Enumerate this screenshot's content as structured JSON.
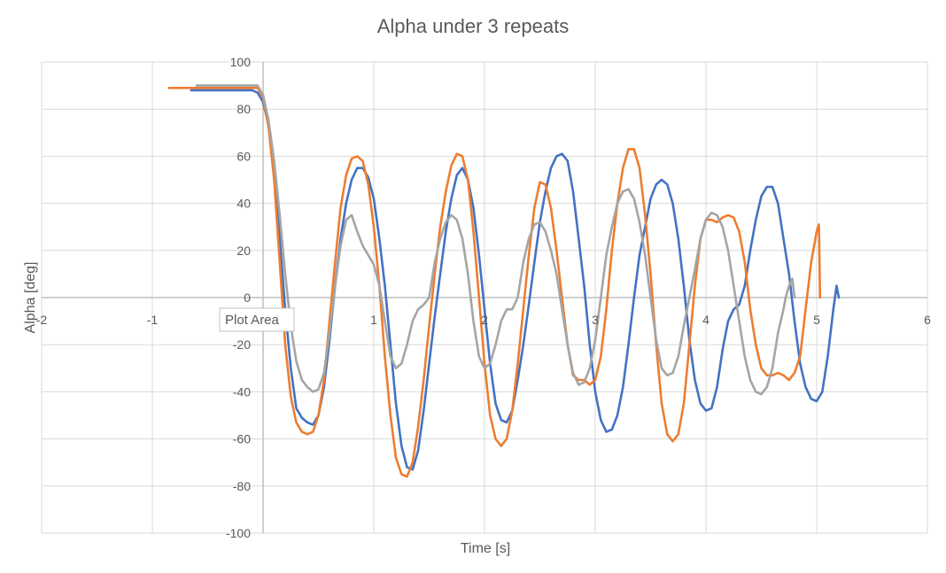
{
  "chart_data": {
    "type": "line",
    "title": "Alpha under 3 repeats",
    "xlabel": "Time [s]",
    "ylabel": "Alpha [deg]",
    "xlim": [
      -2,
      6
    ],
    "ylim": [
      -100,
      100
    ],
    "x_ticks": [
      -2,
      -1,
      0,
      1,
      2,
      3,
      4,
      5,
      6
    ],
    "y_ticks": [
      -100,
      -80,
      -60,
      -40,
      -20,
      0,
      20,
      40,
      60,
      80,
      100
    ],
    "grid": true,
    "legend": "none",
    "tooltip": "Plot Area",
    "series": [
      {
        "color": "#4472C4",
        "points": [
          [
            -0.65,
            88
          ],
          [
            -0.3,
            88
          ],
          [
            -0.1,
            88
          ],
          [
            -0.05,
            87
          ],
          [
            0,
            83
          ],
          [
            0.05,
            73
          ],
          [
            0.1,
            55
          ],
          [
            0.15,
            25
          ],
          [
            0.2,
            -5
          ],
          [
            0.25,
            -30
          ],
          [
            0.3,
            -47
          ],
          [
            0.35,
            -51
          ],
          [
            0.4,
            -53
          ],
          [
            0.45,
            -54
          ],
          [
            0.5,
            -50
          ],
          [
            0.55,
            -38
          ],
          [
            0.6,
            -18
          ],
          [
            0.65,
            5
          ],
          [
            0.7,
            25
          ],
          [
            0.75,
            40
          ],
          [
            0.8,
            50
          ],
          [
            0.85,
            55
          ],
          [
            0.9,
            55
          ],
          [
            0.95,
            51
          ],
          [
            1.0,
            42
          ],
          [
            1.05,
            25
          ],
          [
            1.1,
            5
          ],
          [
            1.15,
            -20
          ],
          [
            1.2,
            -45
          ],
          [
            1.25,
            -63
          ],
          [
            1.3,
            -72
          ],
          [
            1.35,
            -73
          ],
          [
            1.4,
            -65
          ],
          [
            1.45,
            -48
          ],
          [
            1.5,
            -28
          ],
          [
            1.55,
            -8
          ],
          [
            1.6,
            10
          ],
          [
            1.65,
            28
          ],
          [
            1.7,
            42
          ],
          [
            1.75,
            52
          ],
          [
            1.8,
            55
          ],
          [
            1.85,
            50
          ],
          [
            1.9,
            38
          ],
          [
            1.95,
            18
          ],
          [
            2.0,
            -5
          ],
          [
            2.05,
            -28
          ],
          [
            2.1,
            -45
          ],
          [
            2.15,
            -52
          ],
          [
            2.2,
            -53
          ],
          [
            2.25,
            -48
          ],
          [
            2.3,
            -35
          ],
          [
            2.35,
            -20
          ],
          [
            2.4,
            -3
          ],
          [
            2.45,
            15
          ],
          [
            2.5,
            32
          ],
          [
            2.55,
            45
          ],
          [
            2.6,
            55
          ],
          [
            2.65,
            60
          ],
          [
            2.7,
            61
          ],
          [
            2.75,
            58
          ],
          [
            2.8,
            45
          ],
          [
            2.85,
            25
          ],
          [
            2.9,
            5
          ],
          [
            2.95,
            -20
          ],
          [
            3.0,
            -40
          ],
          [
            3.05,
            -52
          ],
          [
            3.1,
            -57
          ],
          [
            3.15,
            -56
          ],
          [
            3.2,
            -50
          ],
          [
            3.25,
            -38
          ],
          [
            3.3,
            -20
          ],
          [
            3.35,
            0
          ],
          [
            3.4,
            18
          ],
          [
            3.45,
            30
          ],
          [
            3.5,
            42
          ],
          [
            3.55,
            48
          ],
          [
            3.6,
            50
          ],
          [
            3.65,
            48
          ],
          [
            3.7,
            40
          ],
          [
            3.75,
            25
          ],
          [
            3.8,
            5
          ],
          [
            3.85,
            -18
          ],
          [
            3.9,
            -35
          ],
          [
            3.95,
            -45
          ],
          [
            4.0,
            -48
          ],
          [
            4.05,
            -47
          ],
          [
            4.1,
            -38
          ],
          [
            4.15,
            -22
          ],
          [
            4.2,
            -10
          ],
          [
            4.25,
            -5
          ],
          [
            4.3,
            -3
          ],
          [
            4.35,
            5
          ],
          [
            4.4,
            20
          ],
          [
            4.45,
            33
          ],
          [
            4.5,
            43
          ],
          [
            4.55,
            47
          ],
          [
            4.6,
            47
          ],
          [
            4.65,
            40
          ],
          [
            4.7,
            25
          ],
          [
            4.75,
            10
          ],
          [
            4.8,
            -10
          ],
          [
            4.85,
            -28
          ],
          [
            4.9,
            -38
          ],
          [
            4.95,
            -43
          ],
          [
            5.0,
            -44
          ],
          [
            5.05,
            -40
          ],
          [
            5.1,
            -25
          ],
          [
            5.15,
            -5
          ],
          [
            5.18,
            5
          ],
          [
            5.2,
            0
          ]
        ]
      },
      {
        "color": "#ED7D31",
        "points": [
          [
            -0.85,
            89
          ],
          [
            -0.5,
            89
          ],
          [
            -0.15,
            89
          ],
          [
            -0.05,
            89
          ],
          [
            0,
            85
          ],
          [
            0.05,
            72
          ],
          [
            0.1,
            50
          ],
          [
            0.15,
            15
          ],
          [
            0.2,
            -20
          ],
          [
            0.25,
            -42
          ],
          [
            0.3,
            -53
          ],
          [
            0.35,
            -57
          ],
          [
            0.4,
            -58
          ],
          [
            0.45,
            -57
          ],
          [
            0.5,
            -50
          ],
          [
            0.55,
            -35
          ],
          [
            0.6,
            -10
          ],
          [
            0.65,
            15
          ],
          [
            0.7,
            38
          ],
          [
            0.75,
            52
          ],
          [
            0.8,
            59
          ],
          [
            0.85,
            60
          ],
          [
            0.9,
            58
          ],
          [
            0.95,
            48
          ],
          [
            1.0,
            30
          ],
          [
            1.05,
            5
          ],
          [
            1.1,
            -25
          ],
          [
            1.15,
            -50
          ],
          [
            1.2,
            -68
          ],
          [
            1.25,
            -75
          ],
          [
            1.3,
            -76
          ],
          [
            1.35,
            -70
          ],
          [
            1.4,
            -55
          ],
          [
            1.45,
            -35
          ],
          [
            1.5,
            -12
          ],
          [
            1.55,
            10
          ],
          [
            1.6,
            30
          ],
          [
            1.65,
            45
          ],
          [
            1.7,
            56
          ],
          [
            1.75,
            61
          ],
          [
            1.8,
            60
          ],
          [
            1.85,
            50
          ],
          [
            1.9,
            28
          ],
          [
            1.95,
            0
          ],
          [
            2.0,
            -28
          ],
          [
            2.05,
            -50
          ],
          [
            2.1,
            -60
          ],
          [
            2.15,
            -63
          ],
          [
            2.2,
            -60
          ],
          [
            2.25,
            -48
          ],
          [
            2.3,
            -28
          ],
          [
            2.35,
            -5
          ],
          [
            2.4,
            18
          ],
          [
            2.45,
            38
          ],
          [
            2.5,
            49
          ],
          [
            2.55,
            48
          ],
          [
            2.6,
            38
          ],
          [
            2.65,
            20
          ],
          [
            2.7,
            0
          ],
          [
            2.75,
            -20
          ],
          [
            2.8,
            -33
          ],
          [
            2.85,
            -35
          ],
          [
            2.9,
            -35
          ],
          [
            2.95,
            -37
          ],
          [
            3.0,
            -35
          ],
          [
            3.05,
            -25
          ],
          [
            3.1,
            -5
          ],
          [
            3.15,
            20
          ],
          [
            3.2,
            40
          ],
          [
            3.25,
            55
          ],
          [
            3.3,
            63
          ],
          [
            3.35,
            63
          ],
          [
            3.4,
            55
          ],
          [
            3.45,
            35
          ],
          [
            3.5,
            10
          ],
          [
            3.55,
            -20
          ],
          [
            3.6,
            -45
          ],
          [
            3.65,
            -58
          ],
          [
            3.7,
            -61
          ],
          [
            3.75,
            -58
          ],
          [
            3.8,
            -45
          ],
          [
            3.85,
            -20
          ],
          [
            3.9,
            5
          ],
          [
            3.95,
            25
          ],
          [
            4.0,
            33
          ],
          [
            4.05,
            33
          ],
          [
            4.1,
            32
          ],
          [
            4.15,
            34
          ],
          [
            4.2,
            35
          ],
          [
            4.25,
            34
          ],
          [
            4.3,
            28
          ],
          [
            4.35,
            15
          ],
          [
            4.4,
            -5
          ],
          [
            4.45,
            -20
          ],
          [
            4.5,
            -30
          ],
          [
            4.55,
            -33
          ],
          [
            4.6,
            -33
          ],
          [
            4.65,
            -32
          ],
          [
            4.7,
            -33
          ],
          [
            4.75,
            -35
          ],
          [
            4.8,
            -32
          ],
          [
            4.85,
            -25
          ],
          [
            4.9,
            -5
          ],
          [
            4.95,
            15
          ],
          [
            5.0,
            28
          ],
          [
            5.02,
            31
          ],
          [
            5.03,
            0
          ]
        ]
      },
      {
        "color": "#A5A5A5",
        "points": [
          [
            -0.6,
            90
          ],
          [
            -0.3,
            90
          ],
          [
            -0.05,
            90
          ],
          [
            0,
            86
          ],
          [
            0.05,
            75
          ],
          [
            0.1,
            58
          ],
          [
            0.15,
            35
          ],
          [
            0.2,
            10
          ],
          [
            0.25,
            -12
          ],
          [
            0.3,
            -27
          ],
          [
            0.35,
            -35
          ],
          [
            0.4,
            -38
          ],
          [
            0.45,
            -40
          ],
          [
            0.5,
            -39
          ],
          [
            0.55,
            -32
          ],
          [
            0.6,
            -15
          ],
          [
            0.65,
            5
          ],
          [
            0.7,
            22
          ],
          [
            0.75,
            33
          ],
          [
            0.8,
            35
          ],
          [
            0.85,
            28
          ],
          [
            0.9,
            22
          ],
          [
            0.95,
            18
          ],
          [
            1.0,
            14
          ],
          [
            1.05,
            5
          ],
          [
            1.1,
            -10
          ],
          [
            1.15,
            -25
          ],
          [
            1.2,
            -30
          ],
          [
            1.25,
            -28
          ],
          [
            1.3,
            -20
          ],
          [
            1.35,
            -10
          ],
          [
            1.4,
            -5
          ],
          [
            1.45,
            -3
          ],
          [
            1.5,
            0
          ],
          [
            1.55,
            15
          ],
          [
            1.6,
            25
          ],
          [
            1.65,
            32
          ],
          [
            1.7,
            35
          ],
          [
            1.75,
            33
          ],
          [
            1.8,
            25
          ],
          [
            1.85,
            10
          ],
          [
            1.9,
            -10
          ],
          [
            1.95,
            -25
          ],
          [
            2.0,
            -30
          ],
          [
            2.05,
            -28
          ],
          [
            2.1,
            -20
          ],
          [
            2.15,
            -10
          ],
          [
            2.2,
            -5
          ],
          [
            2.25,
            -5
          ],
          [
            2.3,
            0
          ],
          [
            2.35,
            15
          ],
          [
            2.4,
            25
          ],
          [
            2.45,
            31
          ],
          [
            2.5,
            32
          ],
          [
            2.55,
            28
          ],
          [
            2.6,
            20
          ],
          [
            2.65,
            10
          ],
          [
            2.7,
            -5
          ],
          [
            2.75,
            -20
          ],
          [
            2.8,
            -32
          ],
          [
            2.85,
            -37
          ],
          [
            2.9,
            -36
          ],
          [
            2.95,
            -30
          ],
          [
            3.0,
            -18
          ],
          [
            3.05,
            0
          ],
          [
            3.1,
            18
          ],
          [
            3.15,
            30
          ],
          [
            3.2,
            40
          ],
          [
            3.25,
            45
          ],
          [
            3.3,
            46
          ],
          [
            3.35,
            42
          ],
          [
            3.4,
            32
          ],
          [
            3.45,
            18
          ],
          [
            3.5,
            0
          ],
          [
            3.55,
            -18
          ],
          [
            3.6,
            -30
          ],
          [
            3.65,
            -33
          ],
          [
            3.7,
            -32
          ],
          [
            3.75,
            -25
          ],
          [
            3.8,
            -12
          ],
          [
            3.85,
            0
          ],
          [
            3.9,
            12
          ],
          [
            3.95,
            25
          ],
          [
            4.0,
            33
          ],
          [
            4.05,
            36
          ],
          [
            4.1,
            35
          ],
          [
            4.15,
            30
          ],
          [
            4.2,
            20
          ],
          [
            4.25,
            5
          ],
          [
            4.3,
            -10
          ],
          [
            4.35,
            -25
          ],
          [
            4.4,
            -35
          ],
          [
            4.45,
            -40
          ],
          [
            4.5,
            -41
          ],
          [
            4.55,
            -38
          ],
          [
            4.6,
            -30
          ],
          [
            4.65,
            -15
          ],
          [
            4.7,
            -5
          ],
          [
            4.72,
            0
          ],
          [
            4.75,
            5
          ],
          [
            4.78,
            8
          ],
          [
            4.8,
            0
          ]
        ]
      }
    ]
  }
}
